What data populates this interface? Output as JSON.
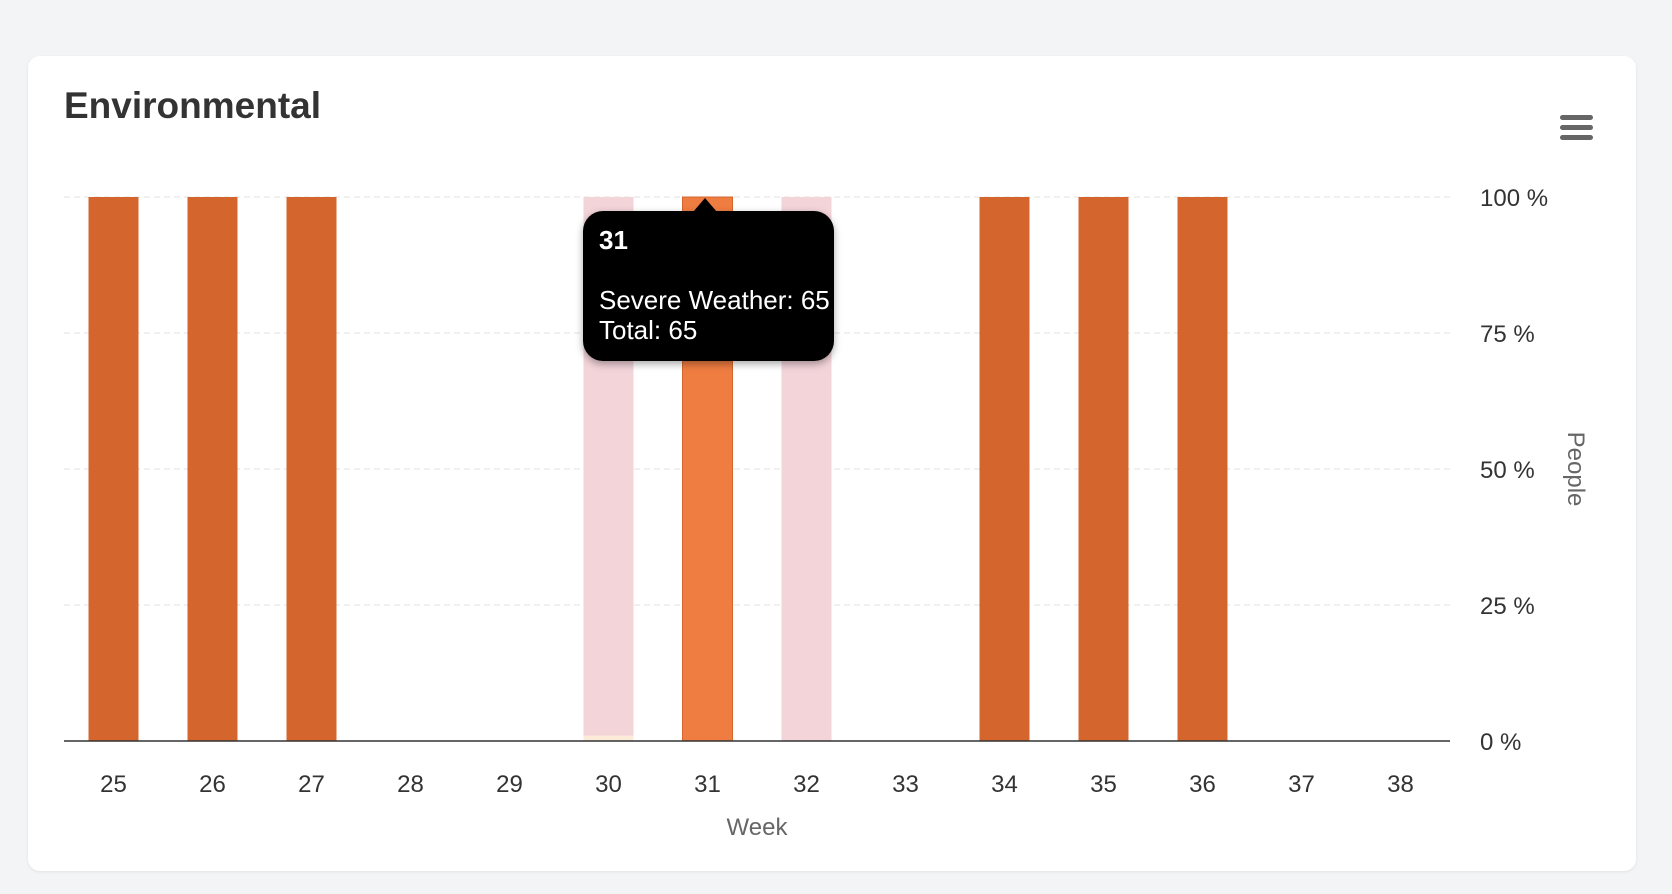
{
  "card": {
    "title": "Environmental"
  },
  "menu": {
    "icon": "hamburger-menu-icon"
  },
  "colors": {
    "bar": "#d4652d",
    "bar_hover": "#ef7d42",
    "faded_series": "#f2d4d9",
    "faded_base": "#fcebd9",
    "grid": "#e0e0e0",
    "axis": "#333333",
    "tooltip_bg": "#000000"
  },
  "chart_data": {
    "type": "bar",
    "stacking": "percent",
    "categories": [
      "25",
      "26",
      "27",
      "28",
      "29",
      "30",
      "31",
      "32",
      "33",
      "34",
      "35",
      "36",
      "37",
      "38"
    ],
    "series": [
      {
        "name": "",
        "color": "#fcebd9",
        "values": [
          0,
          0,
          0,
          0,
          0,
          1,
          0,
          0,
          0,
          0,
          0,
          0,
          0,
          0
        ]
      },
      {
        "name": "Severe Weather",
        "color": "#d4652d",
        "values": [
          100,
          100,
          100,
          0,
          0,
          99,
          100,
          100,
          0,
          100,
          100,
          100,
          0,
          0
        ]
      }
    ],
    "faded_category_indices": [
      4,
      5,
      7
    ],
    "highlighted_category_index": 6,
    "xlabel": "Week",
    "ylabel": "People",
    "yticks": [
      "0 %",
      "25 %",
      "50 %",
      "75 %",
      "100 %"
    ],
    "ylim": [
      0,
      100
    ],
    "y_axis_side": "right",
    "grid": true
  },
  "tooltip": {
    "title": "31",
    "lines": [
      "Severe Weather: 65",
      "Total: 65"
    ]
  }
}
